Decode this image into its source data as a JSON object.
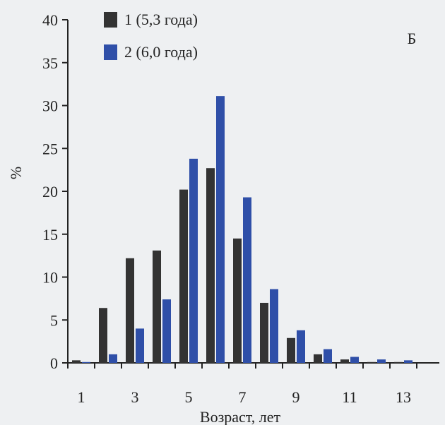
{
  "chart_data": {
    "type": "bar",
    "panel_label": "Б",
    "xlabel": "Возраст, лет",
    "ylabel": "%",
    "ylim": [
      0,
      40
    ],
    "yticks": [
      0,
      5,
      10,
      15,
      20,
      25,
      30,
      35,
      40
    ],
    "categories": [
      1,
      2,
      3,
      4,
      5,
      6,
      7,
      8,
      9,
      10,
      11,
      12,
      13
    ],
    "xtick_labels": [
      "1",
      "3",
      "5",
      "7",
      "9",
      "11",
      "13"
    ],
    "xtick_values": [
      1,
      3,
      5,
      7,
      9,
      11,
      13
    ],
    "legend_position": "top-left",
    "grid": false,
    "series": [
      {
        "name": "1 (5,3 года)",
        "color": "#333333",
        "values": [
          0.3,
          6.4,
          12.2,
          13.1,
          20.2,
          22.7,
          14.5,
          7.0,
          2.9,
          1.0,
          0.4,
          0.1,
          0.1
        ]
      },
      {
        "name": "2 (6,0 года)",
        "color": "#2f4fa8",
        "values": [
          0.1,
          1.0,
          4.0,
          7.4,
          23.8,
          31.1,
          19.3,
          8.6,
          3.8,
          1.6,
          0.7,
          0.4,
          0.3
        ]
      }
    ]
  }
}
